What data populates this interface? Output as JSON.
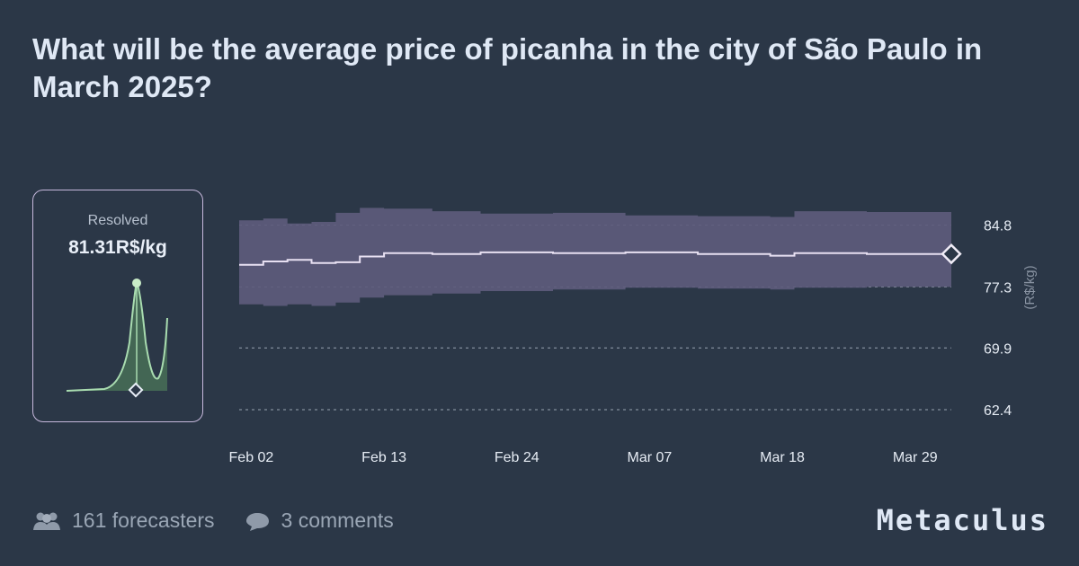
{
  "header": {
    "title": "What will be the average price of picanha in the city of São Paulo in March 2025?"
  },
  "resolution": {
    "label": "Resolved",
    "value": 81.31,
    "unit": "R$/kg"
  },
  "chart_data": {
    "type": "line",
    "x": [
      "Feb 01",
      "Feb 03",
      "Feb 05",
      "Feb 07",
      "Feb 09",
      "Feb 11",
      "Feb 13",
      "Feb 17",
      "Feb 21",
      "Feb 27",
      "Mar 05",
      "Mar 11",
      "Mar 17",
      "Mar 19",
      "Mar 25",
      "Apr 01"
    ],
    "median": [
      80.0,
      80.4,
      80.6,
      80.2,
      80.3,
      81.0,
      81.4,
      81.3,
      81.5,
      81.4,
      81.5,
      81.3,
      81.1,
      81.4,
      81.3,
      81.3
    ],
    "lower": [
      75.2,
      75.0,
      75.2,
      75.0,
      75.4,
      76.0,
      76.3,
      76.5,
      76.8,
      77.0,
      77.2,
      77.1,
      77.0,
      77.2,
      77.3,
      77.3
    ],
    "upper": [
      85.4,
      85.6,
      85.0,
      85.2,
      86.3,
      86.9,
      86.8,
      86.5,
      86.2,
      86.3,
      86.0,
      85.9,
      85.8,
      86.5,
      86.4,
      86.3
    ],
    "xlim": [
      "Feb 01",
      "Apr 01"
    ],
    "xticks": [
      "Feb 02",
      "Feb 13",
      "Feb 24",
      "Mar 07",
      "Mar 18",
      "Mar 29"
    ],
    "ylim": [
      62.4,
      87.6
    ],
    "yticks": [
      84.8,
      77.3,
      69.9,
      62.4
    ],
    "y_label": "(R$/kg)",
    "grid": true,
    "line_color": "#e8e0f2",
    "band_color": "#5d5b7c"
  },
  "footer": {
    "forecasters": "161 forecasters",
    "comments": "3 comments",
    "brand": "Metaculus"
  }
}
